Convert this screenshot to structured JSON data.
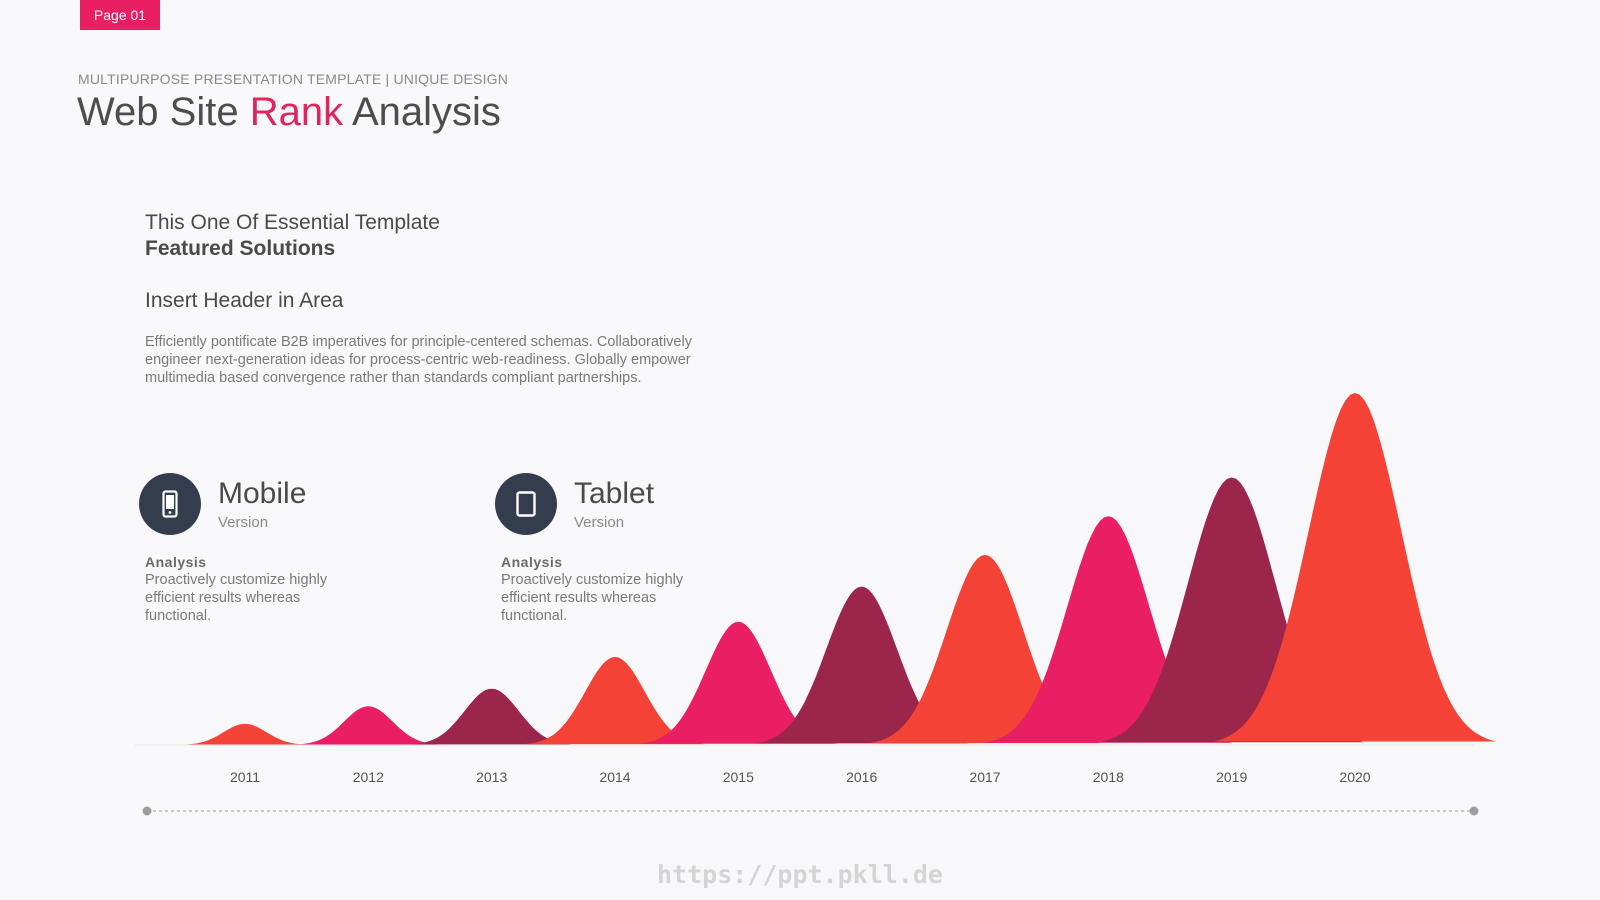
{
  "page": {
    "tag": "Page 01"
  },
  "header": {
    "subtitle": "MULTIPURPOSE PRESENTATION TEMPLATE | UNIQUE DESIGN",
    "title_part1": "Web Site ",
    "title_accent": "Rank",
    "title_part2": " Analysis"
  },
  "intro": {
    "line1": "This One Of Essential Template",
    "line2": "Featured Solutions",
    "header": "Insert Header in Area",
    "body": "Efficiently pontificate B2B imperatives for principle-centered schemas. Collaboratively engineer next-generation ideas for process-centric web-readiness. Globally empower multimedia based convergence rather than standards compliant partnerships."
  },
  "features": [
    {
      "icon": "smartphone-icon",
      "title": "Mobile",
      "subtitle": "Version",
      "label": "Analysis",
      "description": "Proactively customize highly efficient results whereas functional."
    },
    {
      "icon": "tablet-icon",
      "title": "Tablet",
      "subtitle": "Version",
      "label": "Analysis",
      "description": "Proactively customize highly efficient results whereas functional."
    }
  ],
  "colors": {
    "accent": "#e91e63",
    "dark": "#333d4e",
    "red": "#f44336",
    "pink": "#e91e63",
    "maroon": "#9c254b"
  },
  "chart_data": {
    "type": "area",
    "categories": [
      "2011",
      "2012",
      "2013",
      "2014",
      "2015",
      "2016",
      "2017",
      "2018",
      "2019",
      "2020"
    ],
    "values": [
      6,
      11,
      16,
      25,
      35,
      45,
      54,
      65,
      76,
      100
    ],
    "series_colors": [
      "#f44336",
      "#e91e63",
      "#9c254b",
      "#f44336",
      "#e91e63",
      "#9c254b",
      "#f44336",
      "#e91e63",
      "#9c254b",
      "#f44336"
    ],
    "title": "",
    "xlabel": "",
    "ylabel": "",
    "ylim": [
      0,
      100
    ],
    "grid": false
  },
  "footer": {
    "watermark": "https://ppt.pkll.de"
  }
}
